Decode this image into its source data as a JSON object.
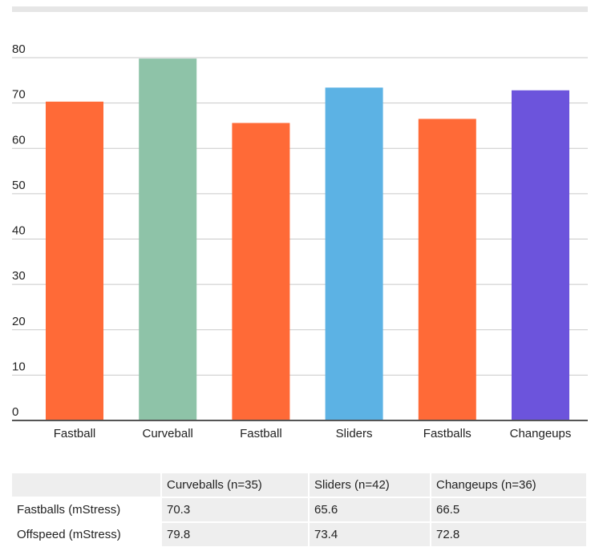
{
  "chart_data": {
    "type": "bar",
    "categories": [
      "Fastball",
      "Curveball",
      "Fastball",
      "Sliders",
      "Fastballs",
      "Changeups"
    ],
    "values": [
      70.3,
      79.8,
      65.6,
      73.4,
      66.5,
      72.8
    ],
    "colors": [
      "#ff6a37",
      "#8ec3a8",
      "#ff6a37",
      "#5cb2e4",
      "#ff6a37",
      "#6c54dc"
    ],
    "ylim": [
      0,
      80
    ],
    "yticks": [
      0,
      10,
      20,
      30,
      40,
      50,
      60,
      70,
      80
    ],
    "grid": true,
    "title": "",
    "xlabel": "",
    "ylabel": ""
  },
  "table": {
    "columns": [
      "",
      "Curveballs (n=35)",
      "Sliders (n=42)",
      "Changeups (n=36)"
    ],
    "rows": [
      {
        "label": "Fastballs (mStress)",
        "cells": [
          "70.3",
          "65.6",
          "66.5"
        ]
      },
      {
        "label": "Offspeed (mStress)",
        "cells": [
          "79.8",
          "73.4",
          "72.8"
        ]
      }
    ]
  }
}
